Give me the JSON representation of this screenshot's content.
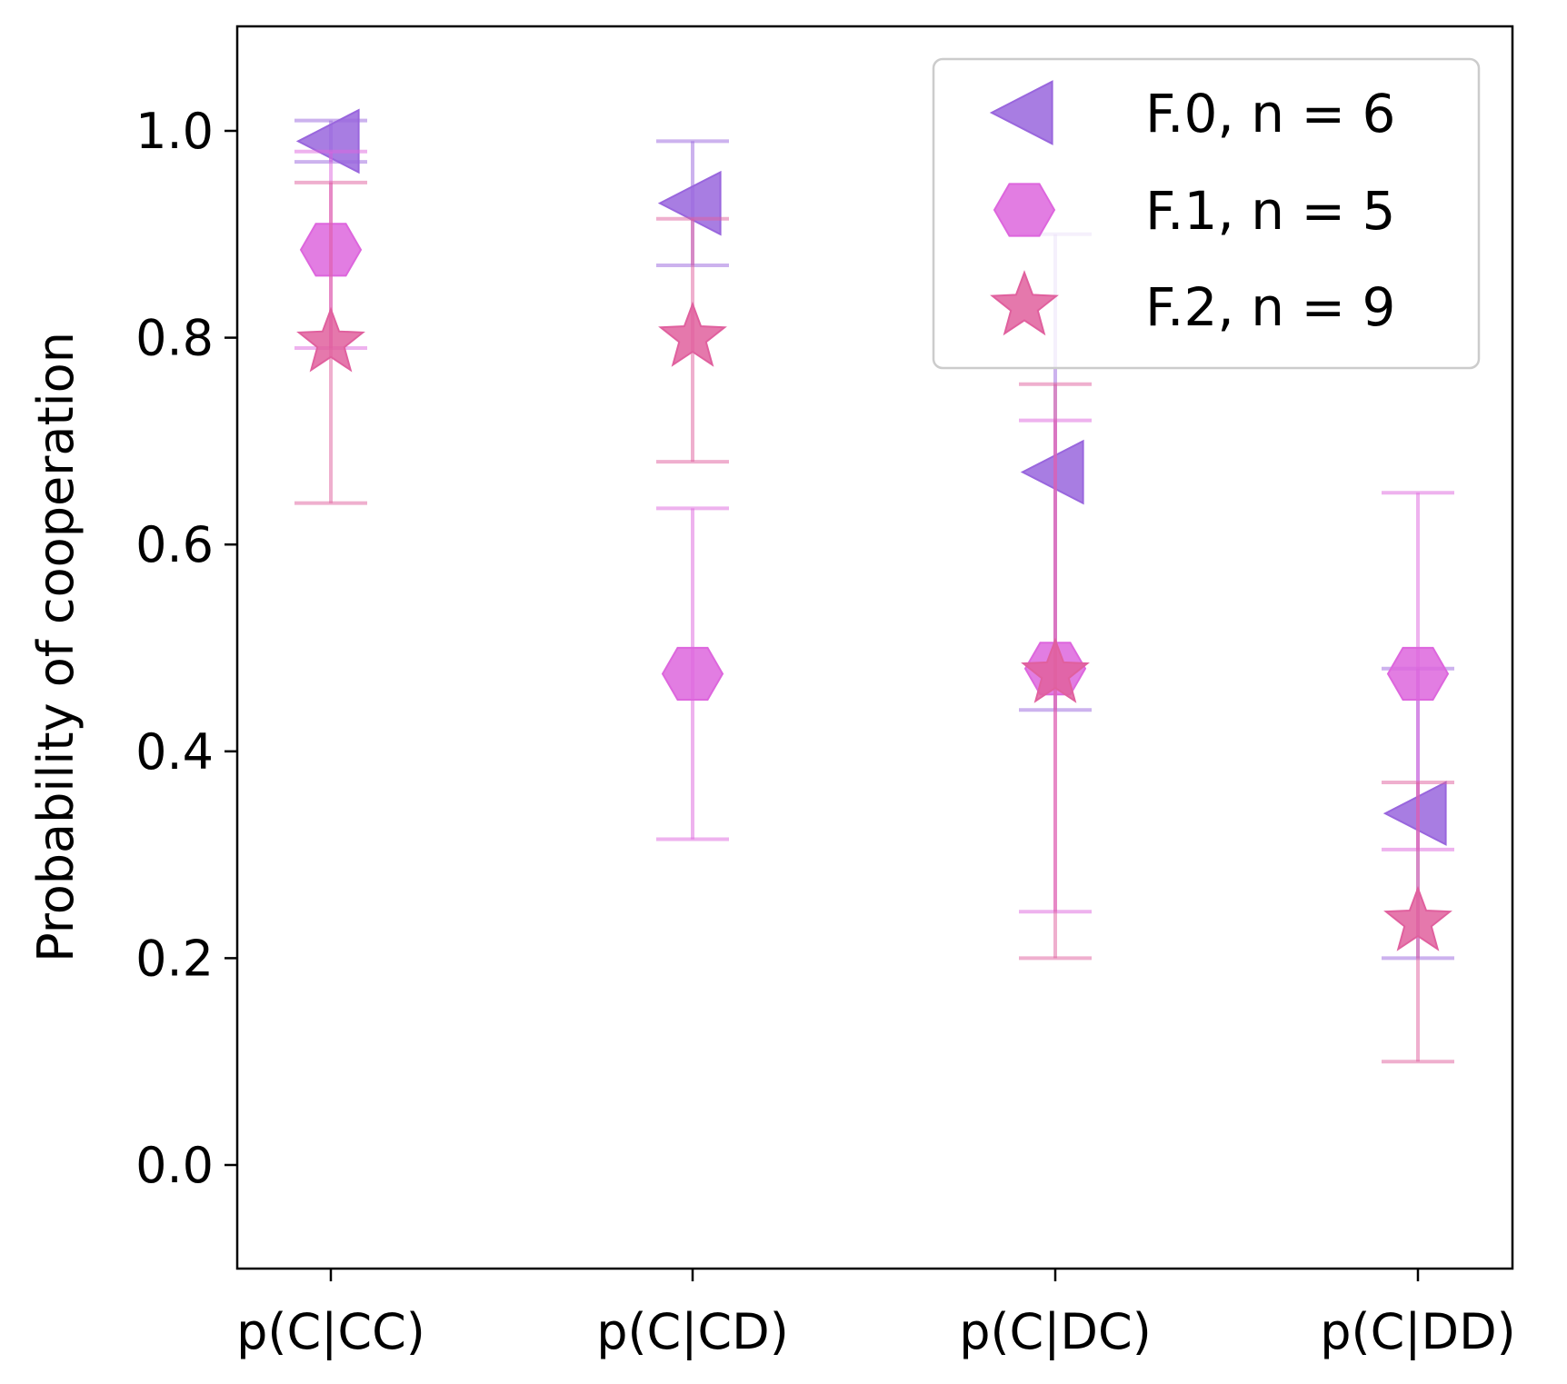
{
  "chart_data": {
    "type": "scatter",
    "ylabel": "Probability of cooperation",
    "xlabel": "",
    "title": "",
    "categories": [
      "p(C|CC)",
      "p(C|CD)",
      "p(C|DC)",
      "p(C|DD)"
    ],
    "ylim": [
      -0.1,
      1.1
    ],
    "yticks": [
      0.0,
      0.2,
      0.4,
      0.6,
      0.8,
      1.0
    ],
    "ytick_labels": [
      "0.0",
      "0.2",
      "0.4",
      "0.6",
      "0.8",
      "1.0"
    ],
    "grid": false,
    "legend_position": "top-right",
    "error_bars": true,
    "series": [
      {
        "name": "F.0, n = 6",
        "marker": "triangle-left",
        "color": "#9966dd",
        "values": [
          0.99,
          0.93,
          0.67,
          0.34
        ],
        "error_low": [
          0.97,
          0.87,
          0.44,
          0.2
        ],
        "error_high": [
          1.01,
          0.99,
          0.9,
          0.48
        ]
      },
      {
        "name": "F.1, n = 5",
        "marker": "hexagon",
        "color": "#dd66dd",
        "values": [
          0.885,
          0.475,
          0.48,
          0.475
        ],
        "error_low": [
          0.79,
          0.315,
          0.245,
          0.305
        ],
        "error_high": [
          0.98,
          0.635,
          0.72,
          0.65
        ]
      },
      {
        "name": "F.2, n = 9",
        "marker": "star",
        "color": "#e0609e",
        "values": [
          0.795,
          0.8,
          0.475,
          0.235
        ],
        "error_low": [
          0.64,
          0.68,
          0.2,
          0.1
        ],
        "error_high": [
          0.95,
          0.915,
          0.755,
          0.37
        ]
      }
    ]
  }
}
